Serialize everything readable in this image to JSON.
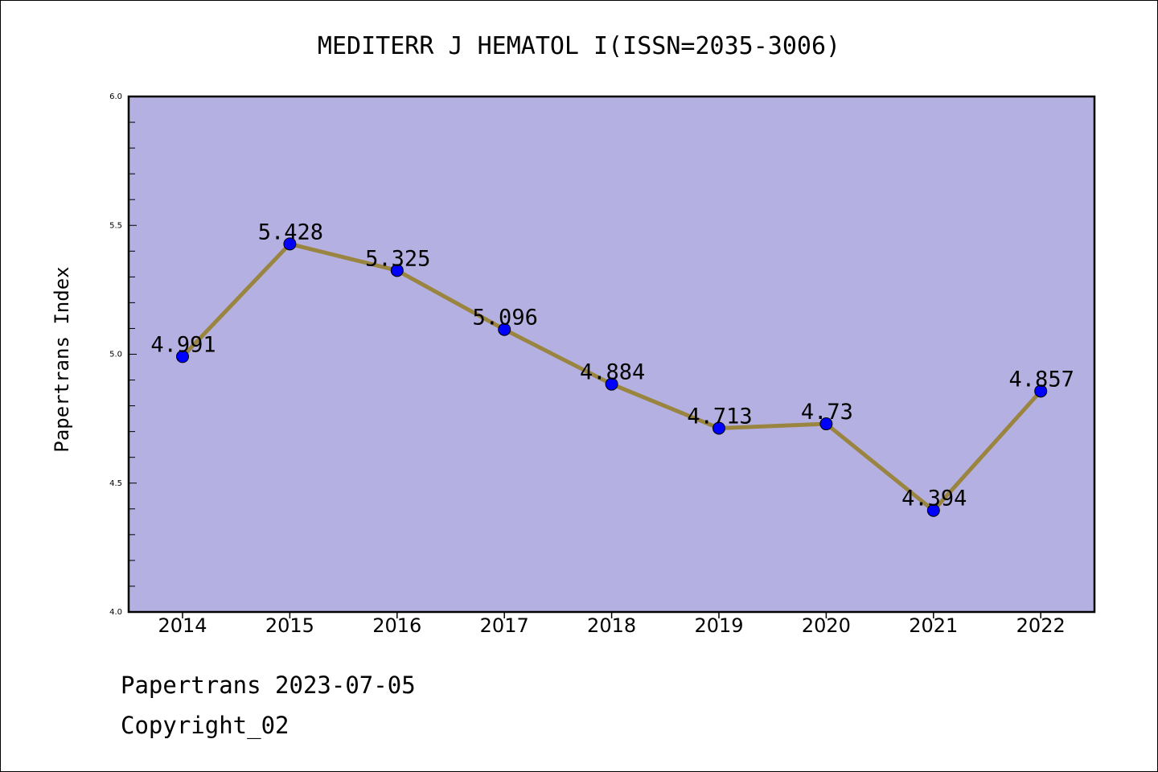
{
  "chart_data": {
    "type": "line",
    "title": "MEDITERR J HEMATOL I(ISSN=2035-3006)",
    "xlabel": "",
    "ylabel": "Papertrans Index",
    "categories": [
      "2014",
      "2015",
      "2016",
      "2017",
      "2018",
      "2019",
      "2020",
      "2021",
      "2022"
    ],
    "series": [
      {
        "values": [
          4.991,
          5.428,
          5.325,
          5.096,
          4.884,
          4.713,
          4.73,
          4.394,
          4.857
        ],
        "labels": [
          "4.991",
          "5.428",
          "5.325",
          "5.096",
          "4.884",
          "4.713",
          "4.73",
          "4.394",
          "4.857"
        ]
      }
    ],
    "ylim": [
      4.0,
      6.0
    ],
    "yticks": [
      "4.0",
      "4.5",
      "5.0",
      "5.5",
      "6.0"
    ],
    "grid": false,
    "colors": {
      "plot_background": "#b5b0e2",
      "line": "#9a8540",
      "marker": "#0000ff"
    }
  },
  "footer": {
    "line1": "Papertrans 2023-07-05",
    "line2": "Copyright_02"
  }
}
